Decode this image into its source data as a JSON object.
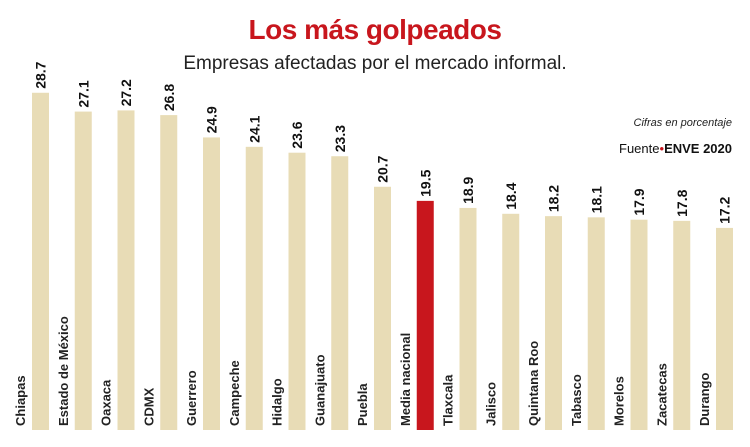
{
  "chart_data": {
    "type": "bar",
    "title": "Los más golpeados",
    "subtitle": "Empresas afectadas por el mercado informal.",
    "note": "Cifras en porcentaje",
    "source_label": "Fuente",
    "source": "ENVE 2020",
    "categories": [
      "Chiapas",
      "Estado de México",
      "Oaxaca",
      "CDMX",
      "Guerrero",
      "Campeche",
      "Hidalgo",
      "Guanajuato",
      "Puebla",
      "Media nacional",
      "Tlaxcala",
      "Jalisco",
      "Quintana Roo",
      "Tabasco",
      "Morelos",
      "Zacatecas",
      "Durango"
    ],
    "values": [
      28.7,
      27.1,
      27.2,
      26.8,
      24.9,
      24.1,
      23.6,
      23.3,
      20.7,
      19.5,
      18.9,
      18.4,
      18.2,
      18.1,
      17.9,
      17.8,
      17.2
    ],
    "highlight": "Media nacional",
    "ylim": [
      0,
      30
    ],
    "grid": false,
    "colors": {
      "bar": "#e8dcb6",
      "highlight": "#c8161d",
      "title": "#c8161d"
    }
  }
}
